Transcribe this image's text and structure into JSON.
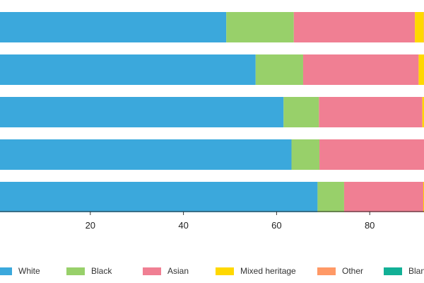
{
  "chart_data": {
    "type": "bar",
    "orientation": "horizontal",
    "stacked": true,
    "title": "",
    "xlabel": "",
    "ylabel": "",
    "xlim": [
      0,
      90
    ],
    "xticks": [
      20,
      40,
      60,
      80
    ],
    "grid": false,
    "legend_position": "bottom",
    "categories": [
      "",
      "",
      "",
      "",
      ""
    ],
    "series": [
      {
        "name": "White",
        "color": "#3BA8DC",
        "values": [
          49.2,
          55.5,
          61.5,
          63.2,
          68.8
        ]
      },
      {
        "name": "Black",
        "color": "#98D06A",
        "values": [
          14.5,
          10.2,
          7.6,
          6.0,
          5.7
        ]
      },
      {
        "name": "Asian",
        "color": "#F07F93",
        "values": [
          26.0,
          24.8,
          22.2,
          22.5,
          17.0
        ]
      },
      {
        "name": "Mixed heritage",
        "color": "#FFD800",
        "values": [
          1.9,
          1.3,
          0.4,
          0.5,
          0.2
        ]
      },
      {
        "name": "Other",
        "color": "#FF9966",
        "values": [
          0.4,
          0.2,
          0.1,
          0.1,
          0.1
        ]
      },
      {
        "name": "Blank",
        "color": "#12B096",
        "values": [
          0.1,
          0.1,
          0.1,
          0.1,
          0.1
        ]
      }
    ]
  }
}
